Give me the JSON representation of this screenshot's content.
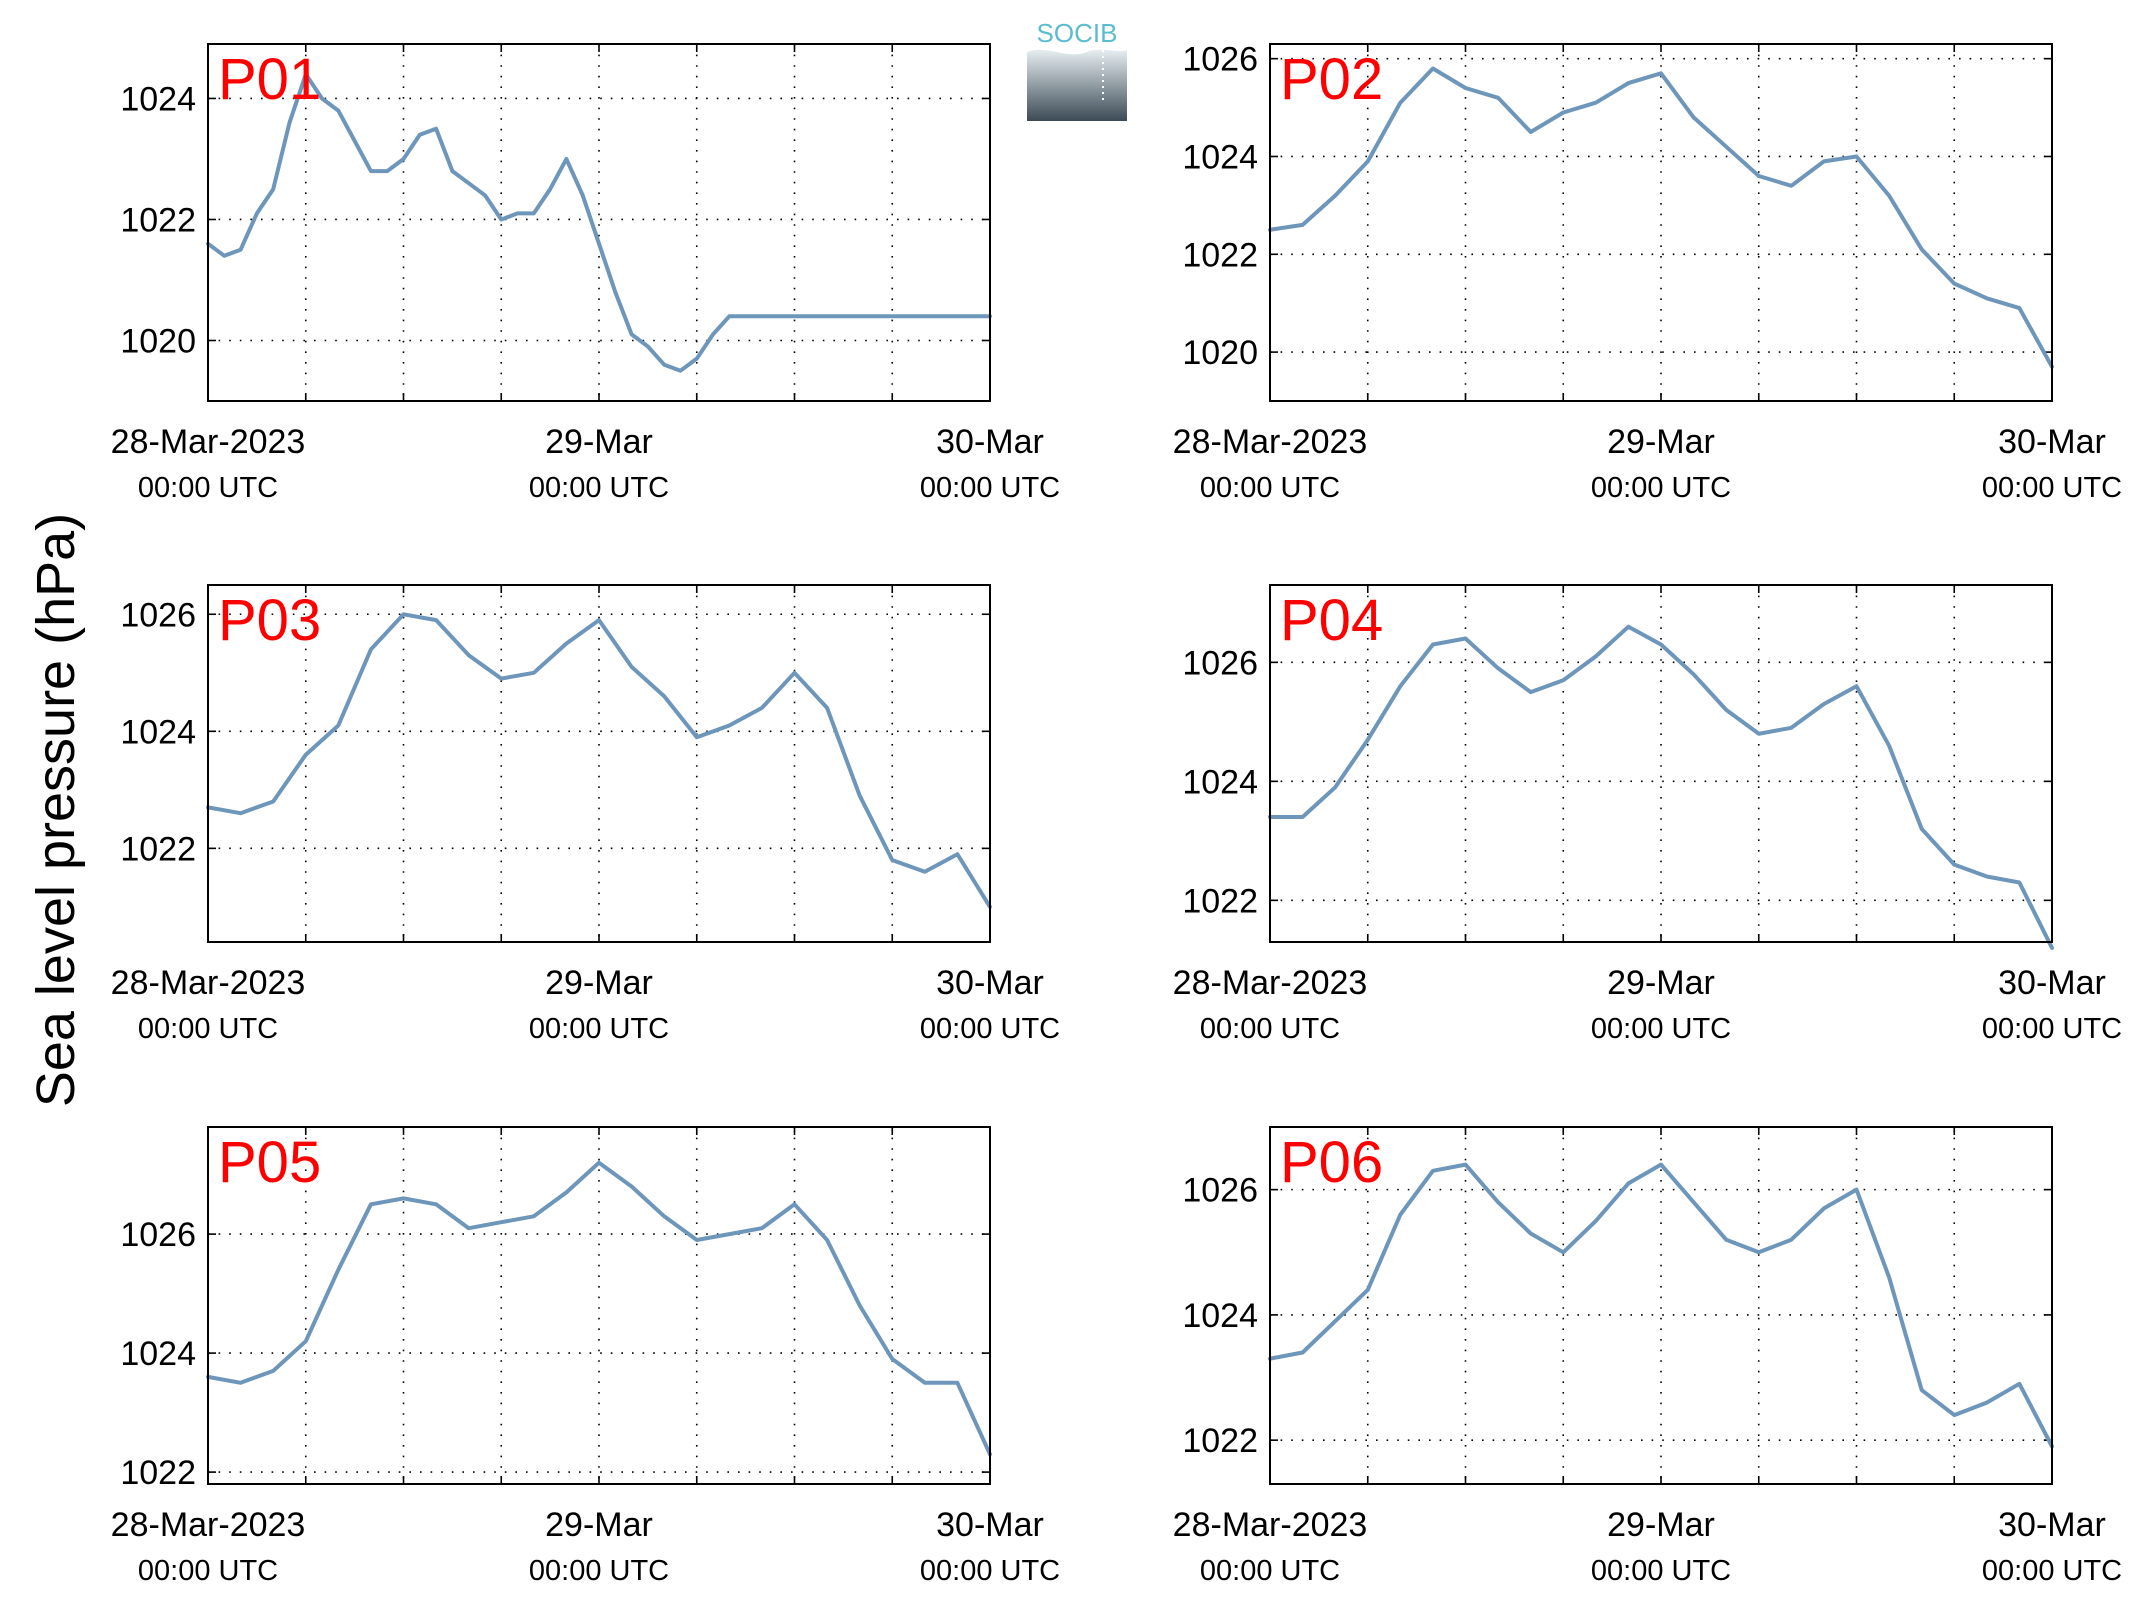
{
  "figure": {
    "ylabel": "Sea level pressure (hPa)",
    "logo_text": "SOCIB"
  },
  "colors": {
    "line": "#6d96ba",
    "station_label": "#ff0000",
    "logo_top": "#5bbcd0",
    "logo_bottom": "#3b4a55"
  },
  "chart_data": [
    {
      "type": "line",
      "station": "P01",
      "ylim": [
        1019.0,
        1024.9
      ],
      "yticks": [
        1020,
        1022,
        1024
      ],
      "x_ticks": [
        {
          "x": 0,
          "date": "28-Mar-2023",
          "time": "00:00 UTC"
        },
        {
          "x": 24,
          "date": "29-Mar",
          "time": "00:00 UTC"
        },
        {
          "x": 48,
          "date": "30-Mar",
          "time": "00:00 UTC"
        }
      ],
      "x_unit": "hours from 28-Mar-2023 00:00 UTC",
      "grid": true,
      "x": [
        0,
        1,
        2,
        3,
        4,
        5,
        6,
        7,
        8,
        9,
        10,
        11,
        12,
        13,
        14,
        15,
        16,
        17,
        18,
        19,
        20,
        21,
        22,
        23,
        24,
        25,
        26,
        27,
        28,
        29,
        30,
        31,
        32,
        33,
        34,
        35,
        36,
        37,
        38,
        39,
        40,
        41,
        42,
        43,
        44,
        45,
        46,
        47,
        48
      ],
      "values": [
        1021.6,
        1021.4,
        1021.5,
        1022.1,
        1022.5,
        1023.6,
        1024.4,
        1024.0,
        1023.8,
        1023.3,
        1022.8,
        1022.8,
        1023.0,
        1023.4,
        1023.5,
        1022.8,
        1022.6,
        1022.4,
        1022.0,
        1022.1,
        1022.1,
        1022.5,
        1023.0,
        1022.4,
        1021.6,
        1020.8,
        1020.1,
        1019.9,
        1019.6,
        1019.5,
        1019.7,
        1020.1,
        1020.4,
        1020.4,
        1020.4,
        1020.4,
        1020.4,
        1020.4,
        1020.4,
        1020.4,
        1020.4,
        1020.4,
        1020.4,
        1020.4,
        1020.4,
        1020.4,
        1020.4,
        1020.4,
        1020.4
      ]
    },
    {
      "type": "line",
      "station": "P02",
      "ylim": [
        1019.0,
        1026.3
      ],
      "yticks": [
        1020,
        1022,
        1024,
        1026
      ],
      "x_ticks": [
        {
          "x": 0,
          "date": "28-Mar-2023",
          "time": "00:00 UTC"
        },
        {
          "x": 24,
          "date": "29-Mar",
          "time": "00:00 UTC"
        },
        {
          "x": 48,
          "date": "30-Mar",
          "time": "00:00 UTC"
        }
      ],
      "x_unit": "hours from 28-Mar-2023 00:00 UTC",
      "grid": true,
      "x": [
        0,
        2,
        4,
        6,
        8,
        10,
        12,
        14,
        16,
        18,
        20,
        22,
        24,
        26,
        28,
        30,
        32,
        34,
        36,
        38,
        40,
        42,
        44,
        46,
        48
      ],
      "values": [
        1022.5,
        1022.6,
        1023.2,
        1023.9,
        1025.1,
        1025.8,
        1025.4,
        1025.2,
        1024.5,
        1024.9,
        1025.1,
        1025.5,
        1025.7,
        1024.8,
        1024.2,
        1023.6,
        1023.4,
        1023.9,
        1024.0,
        1023.2,
        1022.1,
        1021.4,
        1021.1,
        1020.9,
        1019.7
      ]
    },
    {
      "type": "line",
      "station": "P03",
      "ylim": [
        1020.4,
        1026.5
      ],
      "yticks": [
        1022,
        1024,
        1026
      ],
      "x_ticks": [
        {
          "x": 0,
          "date": "28-Mar-2023",
          "time": "00:00 UTC"
        },
        {
          "x": 24,
          "date": "29-Mar",
          "time": "00:00 UTC"
        },
        {
          "x": 48,
          "date": "30-Mar",
          "time": "00:00 UTC"
        }
      ],
      "x_unit": "hours from 28-Mar-2023 00:00 UTC",
      "grid": true,
      "x": [
        0,
        2,
        4,
        6,
        8,
        10,
        12,
        14,
        16,
        18,
        20,
        22,
        24,
        26,
        28,
        30,
        32,
        34,
        36,
        38,
        40,
        42,
        44,
        46,
        48
      ],
      "values": [
        1022.7,
        1022.6,
        1022.8,
        1023.6,
        1024.1,
        1025.4,
        1026.0,
        1025.9,
        1025.3,
        1024.9,
        1025.0,
        1025.5,
        1025.9,
        1025.1,
        1024.6,
        1023.9,
        1024.1,
        1024.4,
        1025.0,
        1024.4,
        1022.9,
        1021.8,
        1021.6,
        1021.9,
        1021.0
      ]
    },
    {
      "type": "line",
      "station": "P04",
      "ylim": [
        1021.3,
        1027.3
      ],
      "yticks": [
        1022,
        1024,
        1026
      ],
      "x_ticks": [
        {
          "x": 0,
          "date": "28-Mar-2023",
          "time": "00:00 UTC"
        },
        {
          "x": 24,
          "date": "29-Mar",
          "time": "00:00 UTC"
        },
        {
          "x": 48,
          "date": "30-Mar",
          "time": "00:00 UTC"
        }
      ],
      "x_unit": "hours from 28-Mar-2023 00:00 UTC",
      "grid": true,
      "x": [
        0,
        2,
        4,
        6,
        8,
        10,
        12,
        14,
        16,
        18,
        20,
        22,
        24,
        26,
        28,
        30,
        32,
        34,
        36,
        38,
        40,
        42,
        44,
        46,
        48
      ],
      "values": [
        1023.4,
        1023.4,
        1023.9,
        1024.7,
        1025.6,
        1026.3,
        1026.4,
        1025.9,
        1025.5,
        1025.7,
        1026.1,
        1026.6,
        1026.3,
        1025.8,
        1025.2,
        1024.8,
        1024.9,
        1025.3,
        1025.6,
        1024.6,
        1023.2,
        1022.6,
        1022.4,
        1022.3,
        1021.2
      ]
    },
    {
      "type": "line",
      "station": "P05",
      "ylim": [
        1021.8,
        1027.8
      ],
      "yticks": [
        1022,
        1024,
        1026
      ],
      "x_ticks": [
        {
          "x": 0,
          "date": "28-Mar-2023",
          "time": "00:00 UTC"
        },
        {
          "x": 24,
          "date": "29-Mar",
          "time": "00:00 UTC"
        },
        {
          "x": 48,
          "date": "30-Mar",
          "time": "00:00 UTC"
        }
      ],
      "x_unit": "hours from 28-Mar-2023 00:00 UTC",
      "grid": true,
      "x": [
        0,
        2,
        4,
        6,
        8,
        10,
        12,
        14,
        16,
        18,
        20,
        22,
        24,
        26,
        28,
        30,
        32,
        34,
        36,
        38,
        40,
        42,
        44,
        46,
        48
      ],
      "values": [
        1023.6,
        1023.5,
        1023.7,
        1024.2,
        1025.4,
        1026.5,
        1026.6,
        1026.5,
        1026.1,
        1026.2,
        1026.3,
        1026.7,
        1027.2,
        1026.8,
        1026.3,
        1025.9,
        1026.0,
        1026.1,
        1026.5,
        1025.9,
        1024.8,
        1023.9,
        1023.5,
        1023.5,
        1022.3
      ]
    },
    {
      "type": "line",
      "station": "P06",
      "ylim": [
        1021.3,
        1027.0
      ],
      "yticks": [
        1022,
        1024,
        1026
      ],
      "x_ticks": [
        {
          "x": 0,
          "date": "28-Mar-2023",
          "time": "00:00 UTC"
        },
        {
          "x": 24,
          "date": "29-Mar",
          "time": "00:00 UTC"
        },
        {
          "x": 48,
          "date": "30-Mar",
          "time": "00:00 UTC"
        }
      ],
      "x_unit": "hours from 28-Mar-2023 00:00 UTC",
      "grid": true,
      "x": [
        0,
        2,
        4,
        6,
        8,
        10,
        12,
        14,
        16,
        18,
        20,
        22,
        24,
        26,
        28,
        30,
        32,
        34,
        36,
        38,
        40,
        42,
        44,
        46,
        48
      ],
      "values": [
        1023.3,
        1023.4,
        1023.9,
        1024.4,
        1025.6,
        1026.3,
        1026.4,
        1025.8,
        1025.3,
        1025.0,
        1025.5,
        1026.1,
        1026.4,
        1025.8,
        1025.2,
        1025.0,
        1025.2,
        1025.7,
        1026.0,
        1024.6,
        1022.8,
        1022.4,
        1022.6,
        1022.9,
        1021.9
      ]
    }
  ]
}
